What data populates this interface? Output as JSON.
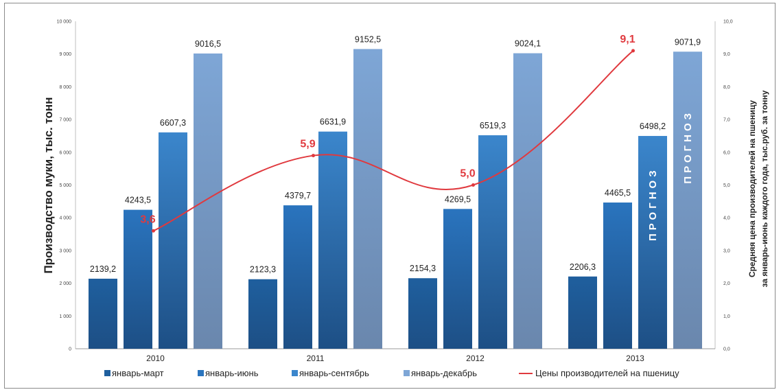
{
  "chart_data": {
    "type": "bar",
    "categories": [
      "2010",
      "2011",
      "2012",
      "2013"
    ],
    "series": [
      {
        "name": "январь-март",
        "values": [
          2139.2,
          2123.3,
          2154.3,
          2206.3
        ],
        "color": "#1f5f9e"
      },
      {
        "name": "январь-июнь",
        "values": [
          4243.5,
          4379.7,
          4269.5,
          4465.5
        ],
        "color": "#2a74be"
      },
      {
        "name": "январь-сентябрь",
        "values": [
          6607.3,
          6631.9,
          6519.3,
          6498.2
        ],
        "color": "#3b86cc"
      },
      {
        "name": "январь-декабрь",
        "values": [
          9016.5,
          9152.5,
          9024.1,
          9071.9
        ],
        "color": "#7ea6d6"
      }
    ],
    "value_labels": [
      [
        "2139,2",
        "4243,5",
        "6607,3",
        "9016,5"
      ],
      [
        "2123,3",
        "4379,7",
        "6631,9",
        "9152,5"
      ],
      [
        "2154,3",
        "4269,5",
        "6519,3",
        "9024,1"
      ],
      [
        "2206,3",
        "4465,5",
        "6498,2",
        "9071,9"
      ]
    ],
    "line_series": {
      "name": "Цены производителей на пшеницу",
      "values": [
        3.6,
        5.9,
        5.0,
        9.1
      ],
      "labels": [
        "3,6",
        "5,9",
        "5,0",
        "9,1"
      ],
      "color": "#e0393e",
      "axis": "right"
    },
    "ylabel": "Производство муки, тыс. тонн",
    "ylabel_right": [
      "Средняя цена производителей на пшеницу",
      "за январь-июнь каждого года, тыс.руб. за тонну"
    ],
    "ylim": [
      0,
      10000
    ],
    "ylim_right": [
      0,
      10
    ],
    "yticks": [
      "0",
      "1 000",
      "2 000",
      "3 000",
      "4 000",
      "5 000",
      "6 000",
      "7 000",
      "8 000",
      "9 000",
      "10 000"
    ],
    "yticks_right": [
      "0,0",
      "1,0",
      "2,0",
      "3,0",
      "4,0",
      "5,0",
      "6,0",
      "7,0",
      "8,0",
      "9,0",
      "10,0"
    ],
    "forecast_label": "ПРОГНОЗ",
    "legend_position": "bottom",
    "grid": false
  }
}
